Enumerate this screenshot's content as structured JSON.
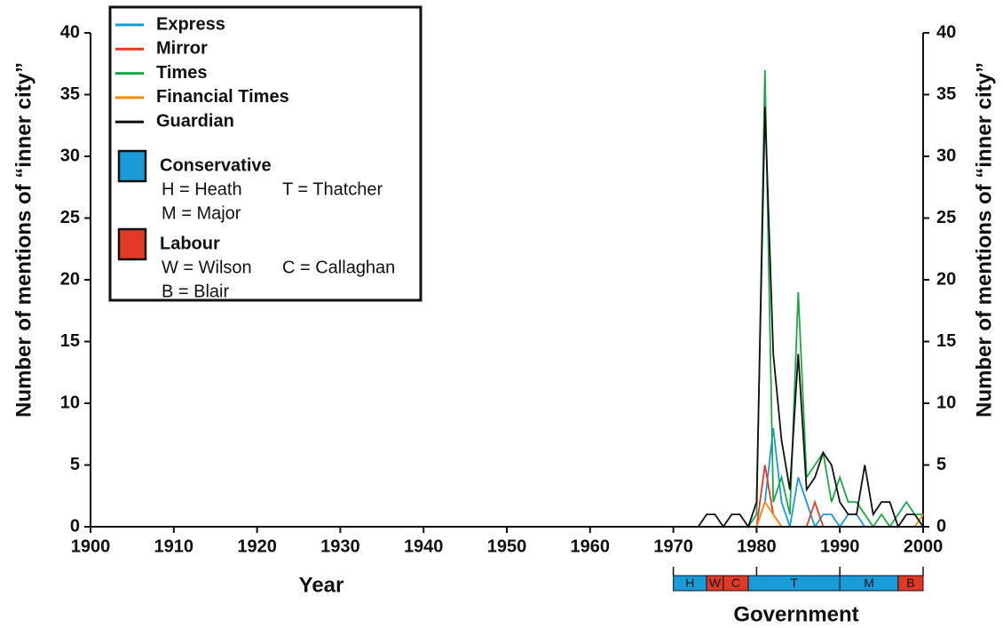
{
  "chart_data": {
    "type": "line",
    "xlabel": "Year",
    "ylabel": "Number of mentions of “inner city”",
    "y2label": "Number of mentions of “inner city”",
    "x": [
      1970,
      1971,
      1972,
      1973,
      1974,
      1975,
      1976,
      1977,
      1978,
      1979,
      1980,
      1981,
      1982,
      1983,
      1984,
      1985,
      1986,
      1987,
      1988,
      1989,
      1990,
      1991,
      1992,
      1993,
      1994,
      1995,
      1996,
      1997,
      1998,
      1999,
      2000
    ],
    "series": [
      {
        "name": "Express",
        "color": "#1a9ad6",
        "values": [
          0,
          0,
          0,
          0,
          0,
          0,
          0,
          0,
          0,
          0,
          0,
          2,
          8,
          2,
          0,
          4,
          2,
          0,
          1,
          1,
          0,
          1,
          1,
          0,
          0,
          0,
          0,
          0,
          0,
          0,
          0
        ]
      },
      {
        "name": "Mirror",
        "color": "#e03a26",
        "values": [
          0,
          0,
          0,
          0,
          0,
          0,
          0,
          0,
          0,
          0,
          0,
          5,
          1,
          0,
          0,
          0,
          0,
          2,
          0,
          0,
          0,
          0,
          0,
          0,
          0,
          0,
          0,
          0,
          0,
          0,
          0
        ]
      },
      {
        "name": "Times",
        "color": "#1fa54a",
        "values": [
          0,
          0,
          0,
          0,
          0,
          0,
          0,
          0,
          0,
          0,
          1,
          37,
          2,
          4,
          1,
          19,
          4,
          5,
          6,
          2,
          4,
          2,
          2,
          1,
          0,
          1,
          0,
          1,
          2,
          1,
          1
        ]
      },
      {
        "name": "Financial Times",
        "color": "#f28c1a",
        "values": [
          0,
          0,
          0,
          0,
          0,
          0,
          0,
          0,
          0,
          0,
          0,
          2,
          1,
          0,
          0,
          0,
          0,
          0,
          0,
          0,
          0,
          0,
          0,
          0,
          0,
          0,
          0,
          0,
          0,
          0,
          1
        ]
      },
      {
        "name": "Guardian",
        "color": "#111111",
        "values": [
          0,
          0,
          0,
          0,
          1,
          1,
          0,
          1,
          1,
          0,
          2,
          34,
          14,
          7,
          3,
          14,
          3,
          4,
          6,
          5,
          2,
          1,
          1,
          5,
          1,
          2,
          2,
          0,
          1,
          1,
          0
        ]
      }
    ],
    "xlim": [
      1900,
      2000
    ],
    "xticks": [
      1900,
      1910,
      1920,
      1930,
      1940,
      1950,
      1960,
      1970,
      1980,
      1990,
      2000
    ],
    "ylim": [
      0,
      40
    ],
    "yticks": [
      0,
      5,
      10,
      15,
      20,
      25,
      30,
      35,
      40
    ],
    "y2lim": [
      0,
      40
    ],
    "y2ticks": [
      0,
      5,
      10,
      15,
      20,
      25,
      30,
      35,
      40
    ],
    "legend": "upper left",
    "parties": [
      {
        "name": "Conservative",
        "color": "#1a9ad6",
        "notes": [
          "H = Heath",
          "T = Thatcher",
          "M = Major"
        ]
      },
      {
        "name": "Labour",
        "color": "#e03a26",
        "notes": [
          "W = Wilson",
          "C = Callaghan",
          "B = Blair"
        ]
      }
    ],
    "government": {
      "label": "Government",
      "segments": [
        {
          "label": "H",
          "party": "Conservative",
          "start": 1970,
          "end": 1974
        },
        {
          "label": "W",
          "party": "Labour",
          "start": 1974,
          "end": 1976
        },
        {
          "label": "C",
          "party": "Labour",
          "start": 1976,
          "end": 1979
        },
        {
          "label": "T",
          "party": "Conservative",
          "start": 1979,
          "end": 1990
        },
        {
          "label": "M",
          "party": "Conservative",
          "start": 1990,
          "end": 1997
        },
        {
          "label": "B",
          "party": "Labour",
          "start": 1997,
          "end": 2000
        }
      ]
    }
  }
}
